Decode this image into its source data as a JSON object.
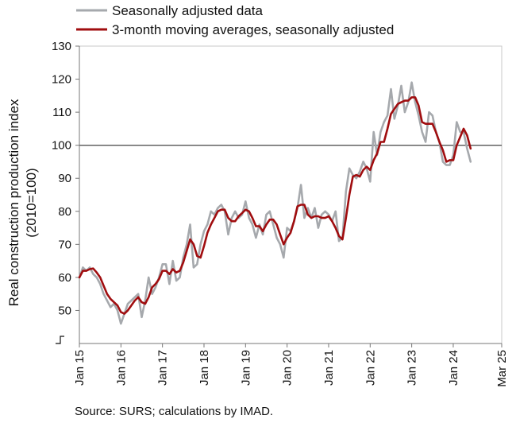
{
  "chart_data": {
    "type": "line",
    "legend": [
      "Seasonally adjusted data",
      "3-month moving averages, seasonally adjusted"
    ],
    "legend_position": "top-left",
    "ylabel_line1": "Real construction production index",
    "ylabel_line2": "(2010=100)",
    "source": "Source: SURS; calculations by IMAD.",
    "ylim": [
      40,
      130
    ],
    "yticks": [
      "50",
      "60",
      "70",
      "80",
      "90",
      "100",
      "110",
      "120",
      "130"
    ],
    "reference_line": 100,
    "grid": false,
    "x_start": "Jan 15",
    "x_end": "Mar 25",
    "xtick_labels": [
      "Jan 15",
      "Jan 16",
      "Jan 17",
      "Jan 18",
      "Jan 19",
      "Jan 20",
      "Jan 21",
      "Jan 22",
      "Jan 23",
      "Jan 24",
      "Mar 25"
    ],
    "xtick_months": [
      "2015-01",
      "2016-01",
      "2017-01",
      "2018-01",
      "2019-01",
      "2020-01",
      "2021-01",
      "2022-01",
      "2023-01",
      "2024-01",
      "2025-03"
    ],
    "series": [
      {
        "name": "Seasonally adjusted data",
        "color": "#a6a9ad",
        "values": [
          60,
          63,
          62,
          63,
          61,
          60,
          58,
          55,
          53,
          51,
          52,
          50,
          46,
          49,
          52,
          53,
          54,
          55,
          48,
          53,
          60,
          55,
          57,
          60,
          64,
          64,
          58,
          65,
          59,
          60,
          66,
          70,
          76,
          63,
          64,
          70,
          74,
          76,
          80,
          79,
          81,
          82,
          80,
          73,
          78,
          80,
          78,
          79,
          83,
          78,
          76,
          72,
          76,
          73,
          79,
          80,
          76,
          72,
          70,
          66,
          75,
          74,
          77,
          81,
          88,
          78,
          81,
          78,
          81,
          75,
          79,
          80,
          79,
          77,
          80,
          71,
          72,
          86,
          93,
          91,
          90,
          92,
          95,
          93,
          89,
          104,
          97,
          104,
          107,
          109,
          117,
          108,
          112,
          118,
          110,
          113,
          119,
          113,
          109,
          104,
          101,
          110,
          109,
          104,
          101,
          95,
          94,
          94,
          97,
          107,
          104,
          104,
          99,
          95
        ]
      },
      {
        "name": "3-month moving averages, seasonally adjusted",
        "color": "#a00d0f",
        "values": [
          60,
          62,
          62,
          62.5,
          62.7,
          61.5,
          60,
          57.5,
          55,
          53.5,
          52.5,
          51.5,
          49.5,
          49,
          50,
          51.5,
          53,
          54,
          52.5,
          52,
          54,
          57,
          58,
          59.5,
          62,
          62,
          61,
          62.5,
          61.5,
          62,
          64.5,
          68,
          71.5,
          70,
          66.5,
          66,
          69.5,
          73.5,
          76,
          78,
          80,
          80.5,
          80.5,
          78,
          77,
          77,
          78.5,
          79.5,
          80.5,
          80,
          78,
          75.5,
          75.5,
          74,
          76,
          77.5,
          77.5,
          76,
          73,
          70,
          72,
          73.5,
          77,
          81.5,
          82,
          82,
          79,
          78,
          78.5,
          78.5,
          78,
          78,
          78.5,
          77,
          75,
          72.5,
          71.5,
          78,
          85,
          90.5,
          91,
          90.5,
          92.5,
          93.5,
          92.5,
          95.5,
          97.5,
          101,
          101,
          105,
          109.5,
          111,
          112.5,
          113,
          113.5,
          113.5,
          114.5,
          114.5,
          112,
          107,
          106.5,
          106.5,
          106.5,
          104,
          101,
          98.5,
          95,
          95.5,
          95.5,
          100,
          102.5,
          105,
          103,
          99
        ]
      }
    ]
  }
}
